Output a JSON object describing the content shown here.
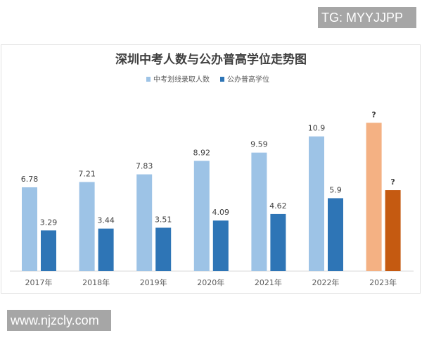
{
  "watermark_top": "TG: MYYJJPP",
  "watermark_bottom": "www.njzcly.com",
  "chart_data": {
    "type": "bar",
    "title": "深圳中考人数与公办普高学位走势图",
    "legend_position": "top",
    "grid": false,
    "categories": [
      "2017年",
      "2018年",
      "2019年",
      "2020年",
      "2021年",
      "2022年",
      "2023年"
    ],
    "series": [
      {
        "name": "中考划线录取人数",
        "color": "#9dc3e6",
        "highlight_color": "#f4b183",
        "values": [
          6.78,
          7.21,
          7.83,
          8.92,
          9.59,
          10.9,
          12.0
        ],
        "labels": [
          "6.78",
          "7.21",
          "7.83",
          "8.92",
          "9.59",
          "10.9",
          "?"
        ]
      },
      {
        "name": "公办普高学位",
        "color": "#2e75b6",
        "highlight_color": "#c55a11",
        "values": [
          3.29,
          3.44,
          3.51,
          4.09,
          4.62,
          5.9,
          6.55
        ],
        "labels": [
          "3.29",
          "3.44",
          "3.51",
          "4.09",
          "4.62",
          "5.9",
          "?"
        ]
      }
    ],
    "ylim": [
      0,
      12.5
    ]
  }
}
